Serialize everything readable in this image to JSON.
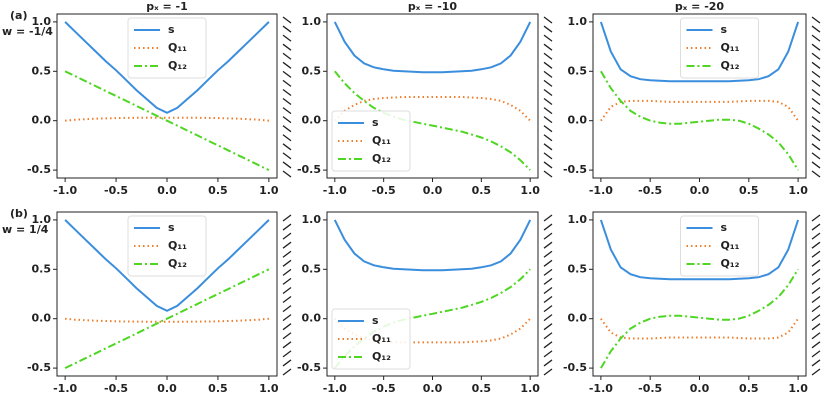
{
  "chart_data": [
    {
      "type": "line",
      "title": "pₓ = -1",
      "panel_label": "(a)",
      "row_label": "w = -1/4",
      "legend": "upper center",
      "x": [
        -1,
        -0.9,
        -0.8,
        -0.7,
        -0.6,
        -0.5,
        -0.4,
        -0.3,
        -0.2,
        -0.1,
        0,
        0.1,
        0.2,
        0.3,
        0.4,
        0.5,
        0.6,
        0.7,
        0.8,
        0.9,
        1
      ],
      "xlim": [
        -1.08,
        1.08
      ],
      "ylim": [
        -0.58,
        1.08
      ],
      "xticks": [
        {
          "value": -1,
          "label": "-1.0"
        },
        {
          "value": -0.5,
          "label": "-0.5"
        },
        {
          "value": 0,
          "label": "0.0"
        },
        {
          "value": 0.5,
          "label": "0.5"
        },
        {
          "value": 1,
          "label": "1.0"
        }
      ],
      "yticks": [
        {
          "value": -0.5,
          "label": "-0.5"
        },
        {
          "value": 0,
          "label": "0.0"
        },
        {
          "value": 0.5,
          "label": "0.5"
        },
        {
          "value": 1,
          "label": "1.0"
        }
      ],
      "series": [
        {
          "name": "s",
          "color": "#3b8ede",
          "linestyle": "solid",
          "values": [
            1.0,
            0.9,
            0.8,
            0.7,
            0.6,
            0.51,
            0.41,
            0.31,
            0.22,
            0.13,
            0.08,
            0.13,
            0.22,
            0.31,
            0.41,
            0.51,
            0.6,
            0.7,
            0.8,
            0.9,
            1.0
          ]
        },
        {
          "name": "Q₁₁",
          "color": "#f07d2a",
          "linestyle": "dotted",
          "values": [
            0,
            0.01,
            0.015,
            0.02,
            0.023,
            0.026,
            0.028,
            0.029,
            0.03,
            0.03,
            0.03,
            0.03,
            0.03,
            0.029,
            0.028,
            0.026,
            0.023,
            0.02,
            0.015,
            0.01,
            0
          ]
        },
        {
          "name": "Q₁₂",
          "color": "#4fd623",
          "linestyle": "dashdot",
          "values": [
            0.5,
            0.45,
            0.4,
            0.35,
            0.3,
            0.25,
            0.2,
            0.15,
            0.1,
            0.05,
            0,
            -0.05,
            -0.1,
            -0.15,
            -0.2,
            -0.25,
            -0.3,
            -0.35,
            -0.4,
            -0.45,
            -0.5
          ]
        }
      ]
    },
    {
      "type": "line",
      "title": "pₓ = -10",
      "legend": "center left",
      "x": [
        -1,
        -0.9,
        -0.8,
        -0.7,
        -0.6,
        -0.5,
        -0.4,
        -0.3,
        -0.2,
        -0.1,
        0,
        0.1,
        0.2,
        0.3,
        0.4,
        0.5,
        0.6,
        0.7,
        0.8,
        0.9,
        1
      ],
      "xlim": [
        -1.08,
        1.08
      ],
      "ylim": [
        -0.58,
        1.08
      ],
      "xticks": [
        {
          "value": -1,
          "label": "-1.0"
        },
        {
          "value": -0.5,
          "label": "-0.5"
        },
        {
          "value": 0,
          "label": "0.0"
        },
        {
          "value": 0.5,
          "label": "0.5"
        },
        {
          "value": 1,
          "label": "1.0"
        }
      ],
      "yticks": [
        {
          "value": -0.5,
          "label": "-0.5"
        },
        {
          "value": 0,
          "label": "0.0"
        },
        {
          "value": 0.5,
          "label": "0.5"
        },
        {
          "value": 1,
          "label": "1.0"
        }
      ],
      "series": [
        {
          "name": "s",
          "color": "#3b8ede",
          "linestyle": "solid",
          "values": [
            1.0,
            0.8,
            0.66,
            0.58,
            0.54,
            0.52,
            0.505,
            0.5,
            0.495,
            0.49,
            0.49,
            0.49,
            0.495,
            0.5,
            0.505,
            0.52,
            0.54,
            0.58,
            0.66,
            0.8,
            1.0
          ]
        },
        {
          "name": "Q₁₁",
          "color": "#f07d2a",
          "linestyle": "dotted",
          "values": [
            0,
            0.1,
            0.16,
            0.2,
            0.22,
            0.23,
            0.235,
            0.24,
            0.24,
            0.24,
            0.24,
            0.24,
            0.24,
            0.24,
            0.235,
            0.23,
            0.22,
            0.2,
            0.16,
            0.1,
            0
          ]
        },
        {
          "name": "Q₁₂",
          "color": "#4fd623",
          "linestyle": "dashdot",
          "values": [
            0.5,
            0.38,
            0.28,
            0.2,
            0.13,
            0.08,
            0.04,
            0.01,
            -0.01,
            -0.03,
            -0.05,
            -0.07,
            -0.09,
            -0.11,
            -0.14,
            -0.17,
            -0.21,
            -0.26,
            -0.32,
            -0.4,
            -0.5
          ]
        }
      ]
    },
    {
      "type": "line",
      "title": "pₓ = -20",
      "legend": "upper center",
      "x": [
        -1,
        -0.9,
        -0.8,
        -0.7,
        -0.6,
        -0.5,
        -0.4,
        -0.3,
        -0.2,
        -0.1,
        0,
        0.1,
        0.2,
        0.3,
        0.4,
        0.5,
        0.6,
        0.7,
        0.8,
        0.9,
        1
      ],
      "xlim": [
        -1.08,
        1.08
      ],
      "ylim": [
        -0.58,
        1.08
      ],
      "xticks": [
        {
          "value": -1,
          "label": "-1.0"
        },
        {
          "value": -0.5,
          "label": "-0.5"
        },
        {
          "value": 0,
          "label": "0.0"
        },
        {
          "value": 0.5,
          "label": "0.5"
        },
        {
          "value": 1,
          "label": "1.0"
        }
      ],
      "yticks": [
        {
          "value": -0.5,
          "label": "-0.5"
        },
        {
          "value": 0,
          "label": "0.0"
        },
        {
          "value": 0.5,
          "label": "0.5"
        },
        {
          "value": 1,
          "label": "1.0"
        }
      ],
      "series": [
        {
          "name": "s",
          "color": "#3b8ede",
          "linestyle": "solid",
          "values": [
            1.0,
            0.7,
            0.52,
            0.45,
            0.42,
            0.41,
            0.405,
            0.4,
            0.4,
            0.4,
            0.4,
            0.4,
            0.4,
            0.4,
            0.405,
            0.41,
            0.42,
            0.45,
            0.52,
            0.7,
            1.0
          ]
        },
        {
          "name": "Q₁₁",
          "color": "#f07d2a",
          "linestyle": "dotted",
          "values": [
            0,
            0.14,
            0.19,
            0.2,
            0.2,
            0.2,
            0.195,
            0.19,
            0.19,
            0.19,
            0.19,
            0.19,
            0.19,
            0.19,
            0.195,
            0.2,
            0.2,
            0.2,
            0.19,
            0.14,
            0
          ]
        },
        {
          "name": "Q₁₂",
          "color": "#4fd623",
          "linestyle": "dashdot",
          "values": [
            0.5,
            0.33,
            0.2,
            0.1,
            0.04,
            0,
            -0.02,
            -0.03,
            -0.03,
            -0.02,
            -0.01,
            0,
            0.01,
            0.01,
            0,
            -0.03,
            -0.08,
            -0.14,
            -0.22,
            -0.34,
            -0.5
          ]
        }
      ]
    },
    {
      "type": "line",
      "panel_label": "(b)",
      "row_label": "w = 1/4",
      "legend": "upper center",
      "x": [
        -1,
        -0.9,
        -0.8,
        -0.7,
        -0.6,
        -0.5,
        -0.4,
        -0.3,
        -0.2,
        -0.1,
        0,
        0.1,
        0.2,
        0.3,
        0.4,
        0.5,
        0.6,
        0.7,
        0.8,
        0.9,
        1
      ],
      "xlim": [
        -1.08,
        1.08
      ],
      "ylim": [
        -0.58,
        1.08
      ],
      "xticks": [
        {
          "value": -1,
          "label": "-1.0"
        },
        {
          "value": -0.5,
          "label": "-0.5"
        },
        {
          "value": 0,
          "label": "0.0"
        },
        {
          "value": 0.5,
          "label": "0.5"
        },
        {
          "value": 1,
          "label": "1.0"
        }
      ],
      "yticks": [
        {
          "value": -0.5,
          "label": "-0.5"
        },
        {
          "value": 0,
          "label": "0.0"
        },
        {
          "value": 0.5,
          "label": "0.5"
        },
        {
          "value": 1,
          "label": "1.0"
        }
      ],
      "series": [
        {
          "name": "s",
          "color": "#3b8ede",
          "linestyle": "solid",
          "values": [
            1.0,
            0.9,
            0.8,
            0.7,
            0.6,
            0.51,
            0.41,
            0.31,
            0.22,
            0.13,
            0.08,
            0.13,
            0.22,
            0.31,
            0.41,
            0.51,
            0.6,
            0.7,
            0.8,
            0.9,
            1.0
          ]
        },
        {
          "name": "Q₁₁",
          "color": "#f07d2a",
          "linestyle": "dotted",
          "values": [
            0,
            -0.01,
            -0.015,
            -0.02,
            -0.023,
            -0.026,
            -0.028,
            -0.029,
            -0.03,
            -0.03,
            -0.03,
            -0.03,
            -0.03,
            -0.029,
            -0.028,
            -0.026,
            -0.023,
            -0.02,
            -0.015,
            -0.01,
            0
          ]
        },
        {
          "name": "Q₁₂",
          "color": "#4fd623",
          "linestyle": "dashdot",
          "values": [
            -0.5,
            -0.45,
            -0.4,
            -0.35,
            -0.3,
            -0.25,
            -0.2,
            -0.15,
            -0.1,
            -0.05,
            0,
            0.05,
            0.1,
            0.15,
            0.2,
            0.25,
            0.3,
            0.35,
            0.4,
            0.45,
            0.5
          ]
        }
      ]
    },
    {
      "type": "line",
      "legend": "center left",
      "x": [
        -1,
        -0.9,
        -0.8,
        -0.7,
        -0.6,
        -0.5,
        -0.4,
        -0.3,
        -0.2,
        -0.1,
        0,
        0.1,
        0.2,
        0.3,
        0.4,
        0.5,
        0.6,
        0.7,
        0.8,
        0.9,
        1
      ],
      "xlim": [
        -1.08,
        1.08
      ],
      "ylim": [
        -0.58,
        1.08
      ],
      "xticks": [
        {
          "value": -1,
          "label": "-1.0"
        },
        {
          "value": -0.5,
          "label": "-0.5"
        },
        {
          "value": 0,
          "label": "0.0"
        },
        {
          "value": 0.5,
          "label": "0.5"
        },
        {
          "value": 1,
          "label": "1.0"
        }
      ],
      "yticks": [
        {
          "value": -0.5,
          "label": "-0.5"
        },
        {
          "value": 0,
          "label": "0.0"
        },
        {
          "value": 0.5,
          "label": "0.5"
        },
        {
          "value": 1,
          "label": "1.0"
        }
      ],
      "series": [
        {
          "name": "s",
          "color": "#3b8ede",
          "linestyle": "solid",
          "values": [
            1.0,
            0.8,
            0.66,
            0.58,
            0.54,
            0.52,
            0.505,
            0.5,
            0.495,
            0.49,
            0.49,
            0.49,
            0.495,
            0.5,
            0.505,
            0.52,
            0.54,
            0.58,
            0.66,
            0.8,
            1.0
          ]
        },
        {
          "name": "Q₁₁",
          "color": "#f07d2a",
          "linestyle": "dotted",
          "values": [
            0,
            -0.1,
            -0.16,
            -0.2,
            -0.22,
            -0.23,
            -0.235,
            -0.24,
            -0.24,
            -0.24,
            -0.24,
            -0.24,
            -0.24,
            -0.24,
            -0.235,
            -0.23,
            -0.22,
            -0.2,
            -0.16,
            -0.1,
            0
          ]
        },
        {
          "name": "Q₁₂",
          "color": "#4fd623",
          "linestyle": "dashdot",
          "values": [
            -0.5,
            -0.38,
            -0.28,
            -0.2,
            -0.13,
            -0.08,
            -0.04,
            -0.01,
            0.01,
            0.03,
            0.05,
            0.07,
            0.09,
            0.11,
            0.14,
            0.17,
            0.21,
            0.26,
            0.32,
            0.4,
            0.5
          ]
        }
      ]
    },
    {
      "type": "line",
      "legend": "upper center",
      "x": [
        -1,
        -0.9,
        -0.8,
        -0.7,
        -0.6,
        -0.5,
        -0.4,
        -0.3,
        -0.2,
        -0.1,
        0,
        0.1,
        0.2,
        0.3,
        0.4,
        0.5,
        0.6,
        0.7,
        0.8,
        0.9,
        1
      ],
      "xlim": [
        -1.08,
        1.08
      ],
      "ylim": [
        -0.58,
        1.08
      ],
      "xticks": [
        {
          "value": -1,
          "label": "-1.0"
        },
        {
          "value": -0.5,
          "label": "-0.5"
        },
        {
          "value": 0,
          "label": "0.0"
        },
        {
          "value": 0.5,
          "label": "0.5"
        },
        {
          "value": 1,
          "label": "1.0"
        }
      ],
      "yticks": [
        {
          "value": -0.5,
          "label": "-0.5"
        },
        {
          "value": 0,
          "label": "0.0"
        },
        {
          "value": 0.5,
          "label": "0.5"
        },
        {
          "value": 1,
          "label": "1.0"
        }
      ],
      "series": [
        {
          "name": "s",
          "color": "#3b8ede",
          "linestyle": "solid",
          "values": [
            1.0,
            0.7,
            0.52,
            0.45,
            0.42,
            0.41,
            0.405,
            0.4,
            0.4,
            0.4,
            0.4,
            0.4,
            0.4,
            0.4,
            0.405,
            0.41,
            0.42,
            0.45,
            0.52,
            0.7,
            1.0
          ]
        },
        {
          "name": "Q₁₁",
          "color": "#f07d2a",
          "linestyle": "dotted",
          "values": [
            0,
            -0.14,
            -0.19,
            -0.2,
            -0.2,
            -0.2,
            -0.195,
            -0.19,
            -0.19,
            -0.19,
            -0.19,
            -0.19,
            -0.19,
            -0.19,
            -0.195,
            -0.2,
            -0.2,
            -0.2,
            -0.19,
            -0.14,
            0
          ]
        },
        {
          "name": "Q₁₂",
          "color": "#4fd623",
          "linestyle": "dashdot",
          "values": [
            -0.5,
            -0.33,
            -0.2,
            -0.1,
            -0.04,
            0,
            0.02,
            0.03,
            0.03,
            0.02,
            0.01,
            0,
            -0.01,
            -0.01,
            0,
            0.03,
            0.08,
            0.14,
            0.22,
            0.34,
            0.5
          ]
        }
      ]
    }
  ]
}
